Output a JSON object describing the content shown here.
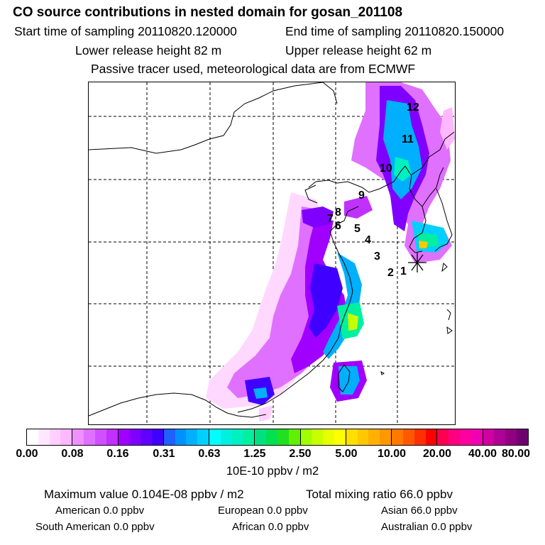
{
  "header": {
    "title": "CO  source contributions in nested domain for gosan_201108",
    "start_time": "Start time of sampling 20110820.120000",
    "end_time": "End time of sampling 20110820.150000",
    "lower_release": "Lower release height   82 m",
    "upper_release": "Upper release height   62 m",
    "tracer_note": "Passive tracer used, meteorological data are from ECMWF"
  },
  "map": {
    "trajectory_labels": [
      "1",
      "2",
      "3",
      "4",
      "5",
      "6",
      "7",
      "8",
      "9",
      "10",
      "11",
      "12"
    ],
    "receptor_marker": "receptor-asterisk"
  },
  "colorbar": {
    "ticks": [
      "0.00",
      "0.08",
      "0.16",
      "0.31",
      "0.63",
      "1.25",
      "2.50",
      "5.00",
      "10.00",
      "20.00",
      "40.00",
      "80.00"
    ],
    "units": "10E-10 ppbv / m2",
    "colors": [
      [
        "#ffffff",
        "#ffe8ff",
        "#ffd0ff",
        "#ffb8ff"
      ],
      [
        "#f090ff",
        "#e070ff",
        "#d050ff",
        "#c030ff"
      ],
      [
        "#a000ff",
        "#8000ff",
        "#6000ff",
        "#4000ff"
      ],
      [
        "#2060ff",
        "#0090ff",
        "#00b0ff",
        "#00d0ff"
      ],
      [
        "#00ffff",
        "#00f0e0",
        "#00f0c0",
        "#00f0a0"
      ],
      [
        "#00e080",
        "#00e050",
        "#20e020",
        "#60f000"
      ],
      [
        "#a0ff00",
        "#c8ff00",
        "#e8ff00",
        "#ffff00"
      ],
      [
        "#ffe000",
        "#ffc800",
        "#ffb000",
        "#ff9800"
      ],
      [
        "#ff7800",
        "#ff5800",
        "#ff3000",
        "#ff0000"
      ],
      [
        "#ff0050",
        "#ff0080",
        "#ff00a0",
        "#f000b0"
      ],
      [
        "#d000a0",
        "#b00098",
        "#900080",
        "#700070"
      ]
    ]
  },
  "footer": {
    "max_value": "Maximum value  0.104E-08 ppbv / m2",
    "total_mixing": "Total mixing ratio       66.0 ppbv",
    "american": "American         0.0 ppbv",
    "european": "European         0.0 ppbv",
    "asian": "Asian      66.0 ppbv",
    "south_american": "South American         0.0 ppbv",
    "african": "African         0.0 ppbv",
    "australian": "Australian         0.0 ppbv"
  }
}
